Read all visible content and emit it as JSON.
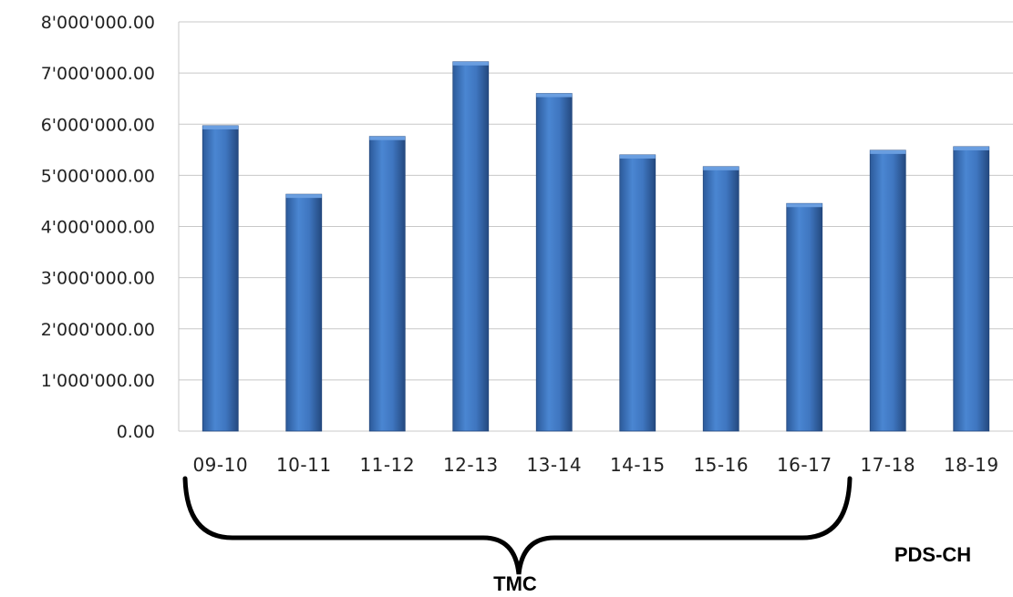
{
  "chart_data": {
    "type": "bar",
    "title": "",
    "xlabel": "",
    "ylabel": "",
    "categories": [
      "09-10",
      "10-11",
      "11-12",
      "12-13",
      "13-14",
      "14-15",
      "15-16",
      "16-17",
      "17-18",
      "18-19"
    ],
    "values": [
      5970000,
      4630000,
      5760000,
      7220000,
      6600000,
      5400000,
      5170000,
      4450000,
      5490000,
      5560000
    ],
    "ylim": [
      0,
      8000000
    ],
    "y_ticks": [
      "0.00",
      "1'000'000.00",
      "2'000'000.00",
      "3'000'000.00",
      "4'000'000.00",
      "5'000'000.00",
      "6'000'000.00",
      "7'000'000.00",
      "8'000'000.00"
    ],
    "grid": true,
    "legend": "none",
    "bar_color": "#3f73b8",
    "annotations": [
      {
        "text": "TMC",
        "span": [
          "09-10",
          "16-17"
        ],
        "marker": "brace"
      },
      {
        "text": "PDS-CH",
        "span": [
          "17-18",
          "18-19"
        ]
      }
    ]
  }
}
